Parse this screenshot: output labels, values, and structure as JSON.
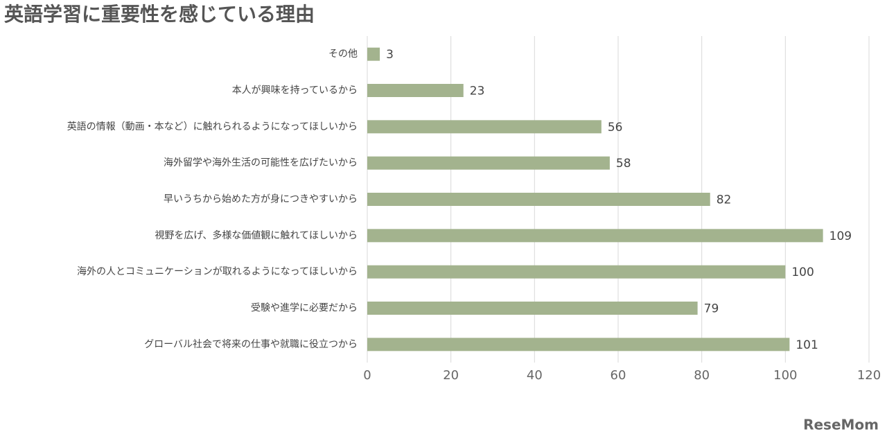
{
  "chart_data": {
    "type": "bar",
    "orientation": "horizontal",
    "title": "英語学習に重要性を感じている理由",
    "categories": [
      "その他",
      "本人が興味を持っているから",
      "英語の情報（動画・本など）に触れられるようになってほしいから",
      "海外留学や海外生活の可能性を広げたいから",
      "早いうちから始めた方が身につきやすいから",
      "視野を広げ、多様な価値観に触れてほしいから",
      "海外の人とコミュニケーションが取れるようになってほしいから",
      "受験や進学に必要だから",
      "グローバル社会で将来の仕事や就職に役立つから"
    ],
    "values": [
      3,
      23,
      56,
      58,
      82,
      109,
      100,
      79,
      101
    ],
    "color": "#a3b38e",
    "xlim": [
      0,
      120
    ],
    "xticks": [
      0,
      20,
      40,
      60,
      80,
      100,
      120
    ],
    "grid": true,
    "watermark": "ReseMom"
  }
}
